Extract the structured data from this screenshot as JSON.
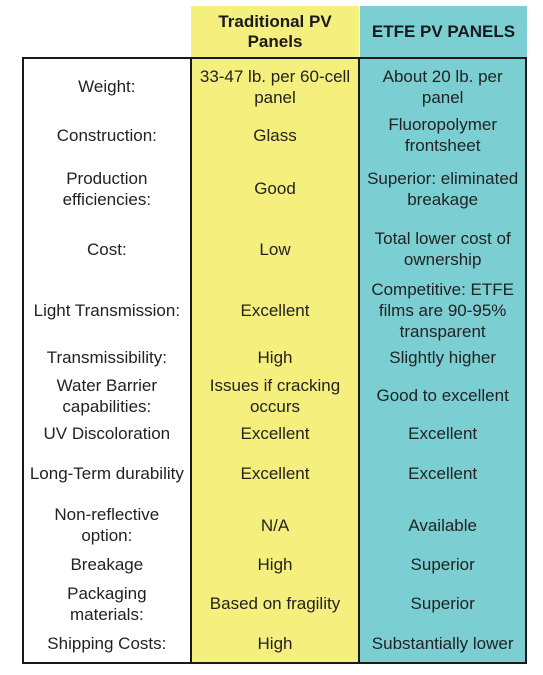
{
  "headers": {
    "traditional": "Traditional PV Panels",
    "etfe": "ETFE PV PANELS"
  },
  "rows": [
    {
      "label": "Weight:",
      "traditional": "33-47 lb. per 60-cell panel",
      "etfe": "About 20 lb. per panel"
    },
    {
      "label": "Construction:",
      "traditional": "Glass",
      "etfe": "Fluoropolymer frontsheet"
    },
    {
      "label": "Production efficiencies:",
      "traditional": "Good",
      "etfe": "Superior: eliminated breakage"
    },
    {
      "label": "Cost:",
      "traditional": "Low",
      "etfe": "Total lower cost of ownership"
    },
    {
      "label": "Light Transmission:",
      "traditional": "Excellent",
      "etfe": "Competitive: ETFE films are 90-95% transparent"
    },
    {
      "label": "Transmissibility:",
      "traditional": "High",
      "etfe": "Slightly higher"
    },
    {
      "label": "Water Barrier capabilities:",
      "traditional": "Issues if cracking occurs",
      "etfe": "Good to excellent"
    },
    {
      "label": "UV Discoloration",
      "traditional": "Excellent",
      "etfe": "Excellent"
    },
    {
      "label": "Long-Term durability",
      "traditional": "Excellent",
      "etfe": "Excellent"
    },
    {
      "label": "Non-reflective option:",
      "traditional": "N/A",
      "etfe": "Available"
    },
    {
      "label": "Breakage",
      "traditional": "High",
      "etfe": "Superior"
    },
    {
      "label": "Packaging materials:",
      "traditional": "Based on fragility",
      "etfe": "Superior"
    },
    {
      "label": "Shipping Costs:",
      "traditional": "High",
      "etfe": "Substantially lower"
    }
  ]
}
